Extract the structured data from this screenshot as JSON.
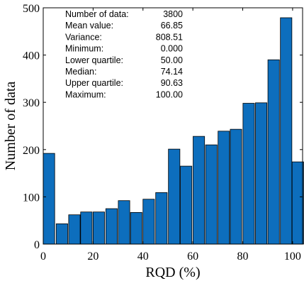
{
  "chart_data": {
    "type": "bar",
    "xlabel": "RQD (%)",
    "ylabel": "Number of data",
    "xlim": [
      0,
      104
    ],
    "ylim": [
      0,
      500
    ],
    "xticks": [
      0,
      20,
      40,
      60,
      80,
      100
    ],
    "yticks": [
      0,
      100,
      200,
      300,
      400,
      500
    ],
    "bar_color": "#0d6ebd",
    "bin_width": 4.6,
    "bins": [
      {
        "x": 2.3,
        "value": 192
      },
      {
        "x": 7.5,
        "value": 43
      },
      {
        "x": 12.5,
        "value": 62
      },
      {
        "x": 17.3,
        "value": 68
      },
      {
        "x": 22.3,
        "value": 68
      },
      {
        "x": 27.4,
        "value": 75
      },
      {
        "x": 32.4,
        "value": 92
      },
      {
        "x": 37.3,
        "value": 67
      },
      {
        "x": 42.3,
        "value": 95
      },
      {
        "x": 47.4,
        "value": 109
      },
      {
        "x": 52.5,
        "value": 201
      },
      {
        "x": 57.3,
        "value": 165
      },
      {
        "x": 62.4,
        "value": 228
      },
      {
        "x": 67.4,
        "value": 210
      },
      {
        "x": 72.4,
        "value": 239
      },
      {
        "x": 77.3,
        "value": 243
      },
      {
        "x": 82.4,
        "value": 298
      },
      {
        "x": 87.4,
        "value": 299
      },
      {
        "x": 92.4,
        "value": 390
      },
      {
        "x": 97.4,
        "value": 479
      },
      {
        "x": 102.1,
        "value": 174
      }
    ],
    "stats": [
      {
        "label": "Number of data:",
        "value": "3800"
      },
      {
        "label": "Mean value:",
        "value": "66.85"
      },
      {
        "label": "Variance:",
        "value": "808.51"
      },
      {
        "label": "Minimum:",
        "value": "0.000"
      },
      {
        "label": "Lower quartile:",
        "value": "50.00"
      },
      {
        "label": "Median:",
        "value": "74.14"
      },
      {
        "label": "Upper quartile:",
        "value": "90.63"
      },
      {
        "label": "Maximum:",
        "value": "100.00"
      }
    ]
  }
}
